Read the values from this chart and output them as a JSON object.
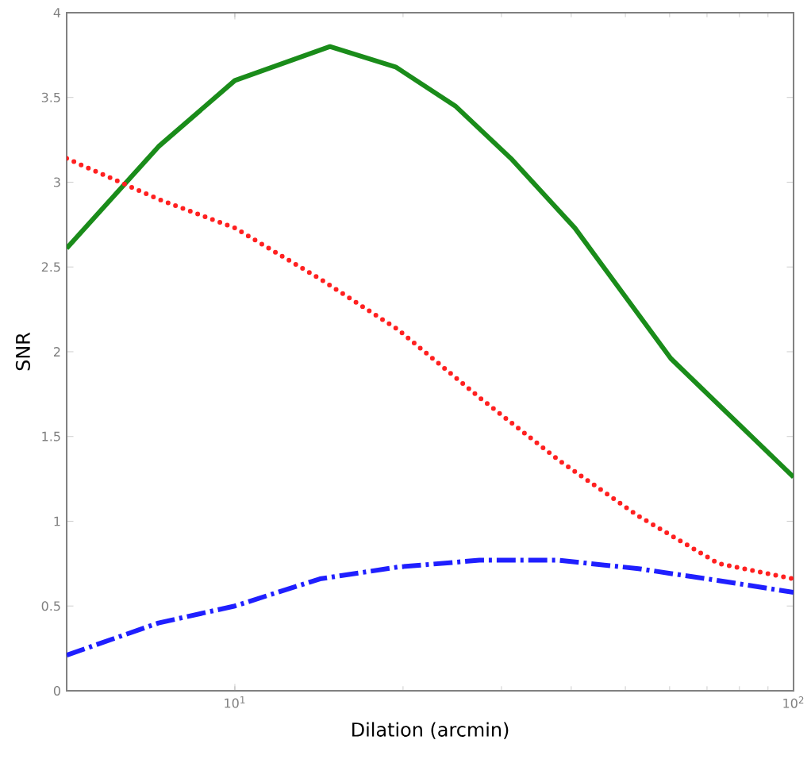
{
  "chart_data": {
    "type": "line",
    "xlabel": "Dilation (arcmin)",
    "ylabel": "SNR",
    "log": "x",
    "xlim": [
      5,
      100
    ],
    "ylim": [
      0,
      4
    ],
    "xticks": [
      {
        "value": 10,
        "label": "10$^{1}$"
      },
      {
        "value": 100,
        "label": "10$^{2}$"
      }
    ],
    "yticks": [
      0,
      0.5,
      1,
      1.5,
      2,
      2.5,
      3,
      3.5,
      4
    ],
    "grid": false,
    "series": [
      {
        "color": "#1a8c1a",
        "line_style": "solid",
        "x": [
          5.0,
          7.3,
          10,
          14.8,
          19.4,
          24.8,
          31.2,
          40.6,
          60.3,
          100
        ],
        "values": [
          2.61,
          3.21,
          3.6,
          3.8,
          3.68,
          3.45,
          3.14,
          2.73,
          1.96,
          1.26
        ]
      },
      {
        "color": "#ff2020",
        "line_style": "dotted",
        "x": [
          5.0,
          7.3,
          10,
          14.2,
          19.6,
          27.4,
          38.0,
          52.8,
          73.4,
          100
        ],
        "values": [
          3.14,
          2.9,
          2.73,
          2.43,
          2.13,
          1.73,
          1.36,
          1.03,
          0.75,
          0.66
        ]
      },
      {
        "color": "#1f1fff",
        "line_style": "dashdot",
        "x": [
          5.0,
          7.3,
          10,
          14.2,
          19.6,
          27.4,
          38.0,
          52.8,
          73.4,
          100
        ],
        "values": [
          0.21,
          0.4,
          0.5,
          0.66,
          0.73,
          0.77,
          0.77,
          0.72,
          0.65,
          0.58
        ]
      }
    ]
  }
}
